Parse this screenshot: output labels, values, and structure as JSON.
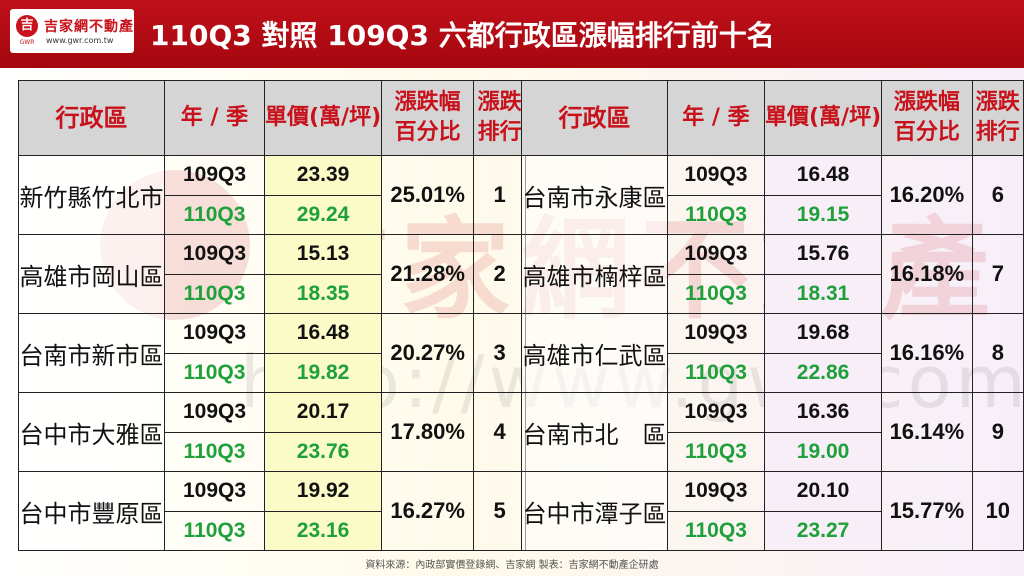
{
  "header": {
    "logo_name": "吉家網不動產",
    "logo_url": "www.gwr.com.tw",
    "logo_mark": "吉",
    "logo_mark_sub": "GWR",
    "title": "110Q3 對照 109Q3  六都行政區漲幅排行前十名",
    "bg_color": "#b30a14"
  },
  "watermark": {
    "text": "吉家網不動產",
    "url": "http://www.gwr.com.tw"
  },
  "table": {
    "columns": {
      "district": "行政區",
      "year_quarter": "年 / 季",
      "unit_price": "單價(萬/坪)",
      "change_line1": "漲跌幅",
      "change_line2": "百分比",
      "rank_line1": "漲跌",
      "rank_line2": "排行"
    },
    "left_rows": [
      {
        "district": "新竹縣竹北市",
        "prev_q": "109Q3",
        "prev_price": "23.39",
        "cur_q": "110Q3",
        "cur_price": "29.24",
        "change": "25.01%",
        "rank": "1"
      },
      {
        "district": "高雄市岡山區",
        "prev_q": "109Q3",
        "prev_price": "15.13",
        "cur_q": "110Q3",
        "cur_price": "18.35",
        "change": "21.28%",
        "rank": "2"
      },
      {
        "district": "台南市新市區",
        "prev_q": "109Q3",
        "prev_price": "16.48",
        "cur_q": "110Q3",
        "cur_price": "19.82",
        "change": "20.27%",
        "rank": "3"
      },
      {
        "district": "台中市大雅區",
        "prev_q": "109Q3",
        "prev_price": "20.17",
        "cur_q": "110Q3",
        "cur_price": "23.76",
        "change": "17.80%",
        "rank": "4"
      },
      {
        "district": "台中市豐原區",
        "prev_q": "109Q3",
        "prev_price": "19.92",
        "cur_q": "110Q3",
        "cur_price": "23.16",
        "change": "16.27%",
        "rank": "5"
      }
    ],
    "right_rows": [
      {
        "district": "台南市永康區",
        "prev_q": "109Q3",
        "prev_price": "16.48",
        "cur_q": "110Q3",
        "cur_price": "19.15",
        "change": "16.20%",
        "rank": "6"
      },
      {
        "district": "高雄市楠梓區",
        "prev_q": "109Q3",
        "prev_price": "15.76",
        "cur_q": "110Q3",
        "cur_price": "18.31",
        "change": "16.18%",
        "rank": "7"
      },
      {
        "district": "高雄市仁武區",
        "prev_q": "109Q3",
        "prev_price": "19.68",
        "cur_q": "110Q3",
        "cur_price": "22.86",
        "change": "16.16%",
        "rank": "8"
      },
      {
        "district": "台南市北　區",
        "prev_q": "109Q3",
        "prev_price": "16.36",
        "cur_q": "110Q3",
        "cur_price": "19.00",
        "change": "16.14%",
        "rank": "9"
      },
      {
        "district": "台中市潭子區",
        "prev_q": "109Q3",
        "prev_price": "20.10",
        "cur_q": "110Q3",
        "cur_price": "23.27",
        "change": "15.77%",
        "rank": "10"
      }
    ]
  },
  "footer": {
    "source": "資料來源：內政部實價登錄網、吉家網  製表：吉家網不動產企研處"
  },
  "colors": {
    "header_red": "#b30a14",
    "header_text_red": "#c8111b",
    "current_green": "#1ea03a"
  }
}
